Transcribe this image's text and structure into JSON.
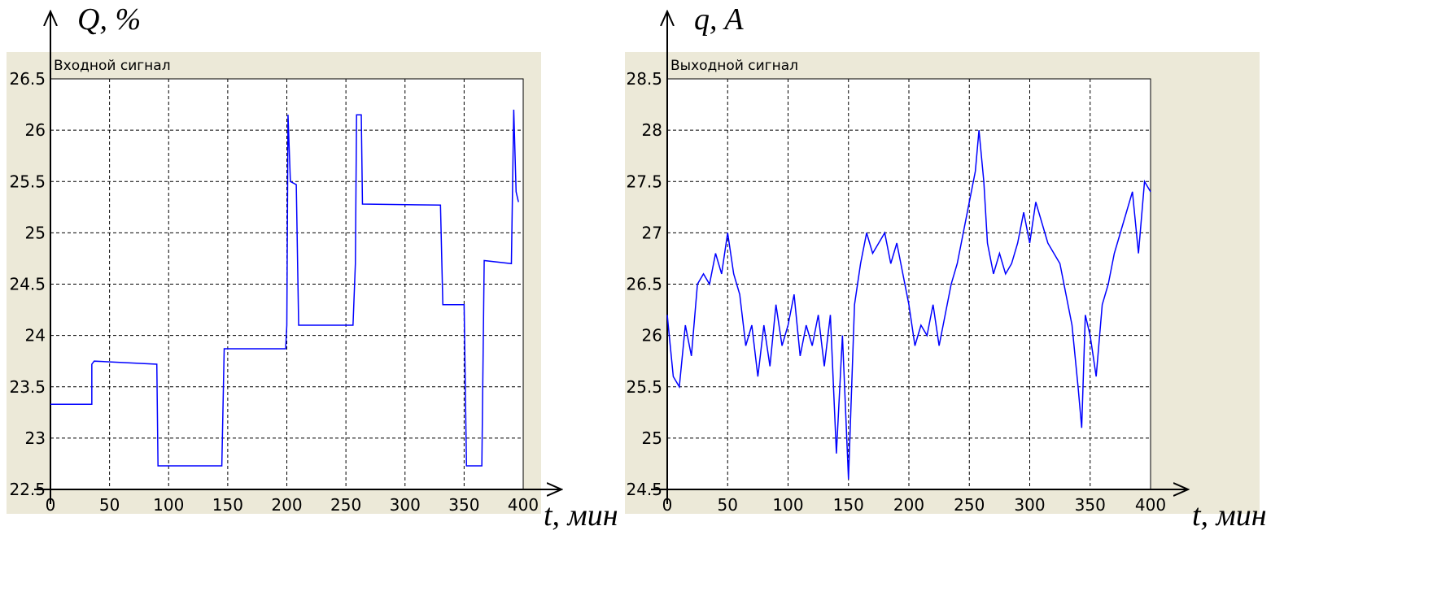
{
  "chart_data": [
    {
      "type": "line",
      "title": "Входной сигнал",
      "y_axis_label": "Q, %",
      "x_axis_label": "t, мин",
      "color": "#0000ff",
      "x": [
        0,
        35,
        35,
        37,
        90,
        91,
        145,
        147,
        199,
        200,
        201,
        203,
        208,
        210,
        256,
        258,
        259,
        263,
        264,
        330,
        332,
        350,
        352,
        365,
        367,
        390,
        392,
        394,
        396
      ],
      "values": [
        23.33,
        23.33,
        23.72,
        23.75,
        23.72,
        22.73,
        22.73,
        23.87,
        23.87,
        24.1,
        26.15,
        25.5,
        25.47,
        24.1,
        24.1,
        24.7,
        26.15,
        26.15,
        25.28,
        25.27,
        24.3,
        24.3,
        22.73,
        22.73,
        24.73,
        24.7,
        26.2,
        25.4,
        25.3
      ],
      "xlim": [
        0,
        400
      ],
      "xticks": [
        0,
        50,
        100,
        150,
        200,
        250,
        300,
        350,
        400
      ],
      "ylim": [
        22.5,
        26.5
      ],
      "yticks": [
        22.5,
        23,
        23.5,
        24,
        24.5,
        25,
        25.5,
        26,
        26.5
      ],
      "grid": true
    },
    {
      "type": "line",
      "title": "Выходной сигнал",
      "y_axis_label": "q, A",
      "x_axis_label": "t, мин",
      "color": "#0000ff",
      "x": [
        0,
        5,
        10,
        15,
        20,
        25,
        30,
        35,
        40,
        45,
        50,
        55,
        60,
        65,
        70,
        75,
        80,
        85,
        90,
        95,
        100,
        105,
        110,
        115,
        120,
        125,
        130,
        135,
        140,
        145,
        150,
        155,
        160,
        165,
        170,
        175,
        180,
        185,
        190,
        195,
        200,
        205,
        210,
        215,
        220,
        225,
        230,
        235,
        240,
        245,
        250,
        255,
        258,
        262,
        265,
        270,
        275,
        280,
        285,
        290,
        295,
        300,
        305,
        310,
        315,
        320,
        325,
        330,
        335,
        340,
        343,
        346,
        350,
        355,
        360,
        365,
        370,
        375,
        380,
        385,
        390,
        395,
        400
      ],
      "values": [
        26.2,
        25.6,
        25.5,
        26.1,
        25.8,
        26.5,
        26.6,
        26.5,
        26.8,
        26.6,
        27.0,
        26.6,
        26.4,
        25.9,
        26.1,
        25.6,
        26.1,
        25.7,
        26.3,
        25.9,
        26.1,
        26.4,
        25.8,
        26.1,
        25.9,
        26.2,
        25.7,
        26.2,
        24.85,
        26.0,
        24.6,
        26.3,
        26.7,
        27.0,
        26.8,
        26.9,
        27.0,
        26.7,
        26.9,
        26.6,
        26.3,
        25.9,
        26.1,
        26.0,
        26.3,
        25.9,
        26.2,
        26.5,
        26.7,
        27.0,
        27.3,
        27.6,
        28.0,
        27.5,
        26.9,
        26.6,
        26.8,
        26.6,
        26.7,
        26.9,
        27.2,
        26.9,
        27.3,
        27.1,
        26.9,
        26.8,
        26.7,
        26.4,
        26.1,
        25.5,
        25.1,
        26.2,
        26.0,
        25.6,
        26.3,
        26.5,
        26.8,
        27.0,
        27.2,
        27.4,
        26.8,
        27.5,
        27.4
      ],
      "xlim": [
        0,
        400
      ],
      "xticks": [
        0,
        50,
        100,
        150,
        200,
        250,
        300,
        350,
        400
      ],
      "ylim": [
        24.5,
        28.5
      ],
      "yticks": [
        24.5,
        25,
        25.5,
        26,
        26.5,
        27,
        27.5,
        28,
        28.5
      ],
      "grid": true
    }
  ]
}
